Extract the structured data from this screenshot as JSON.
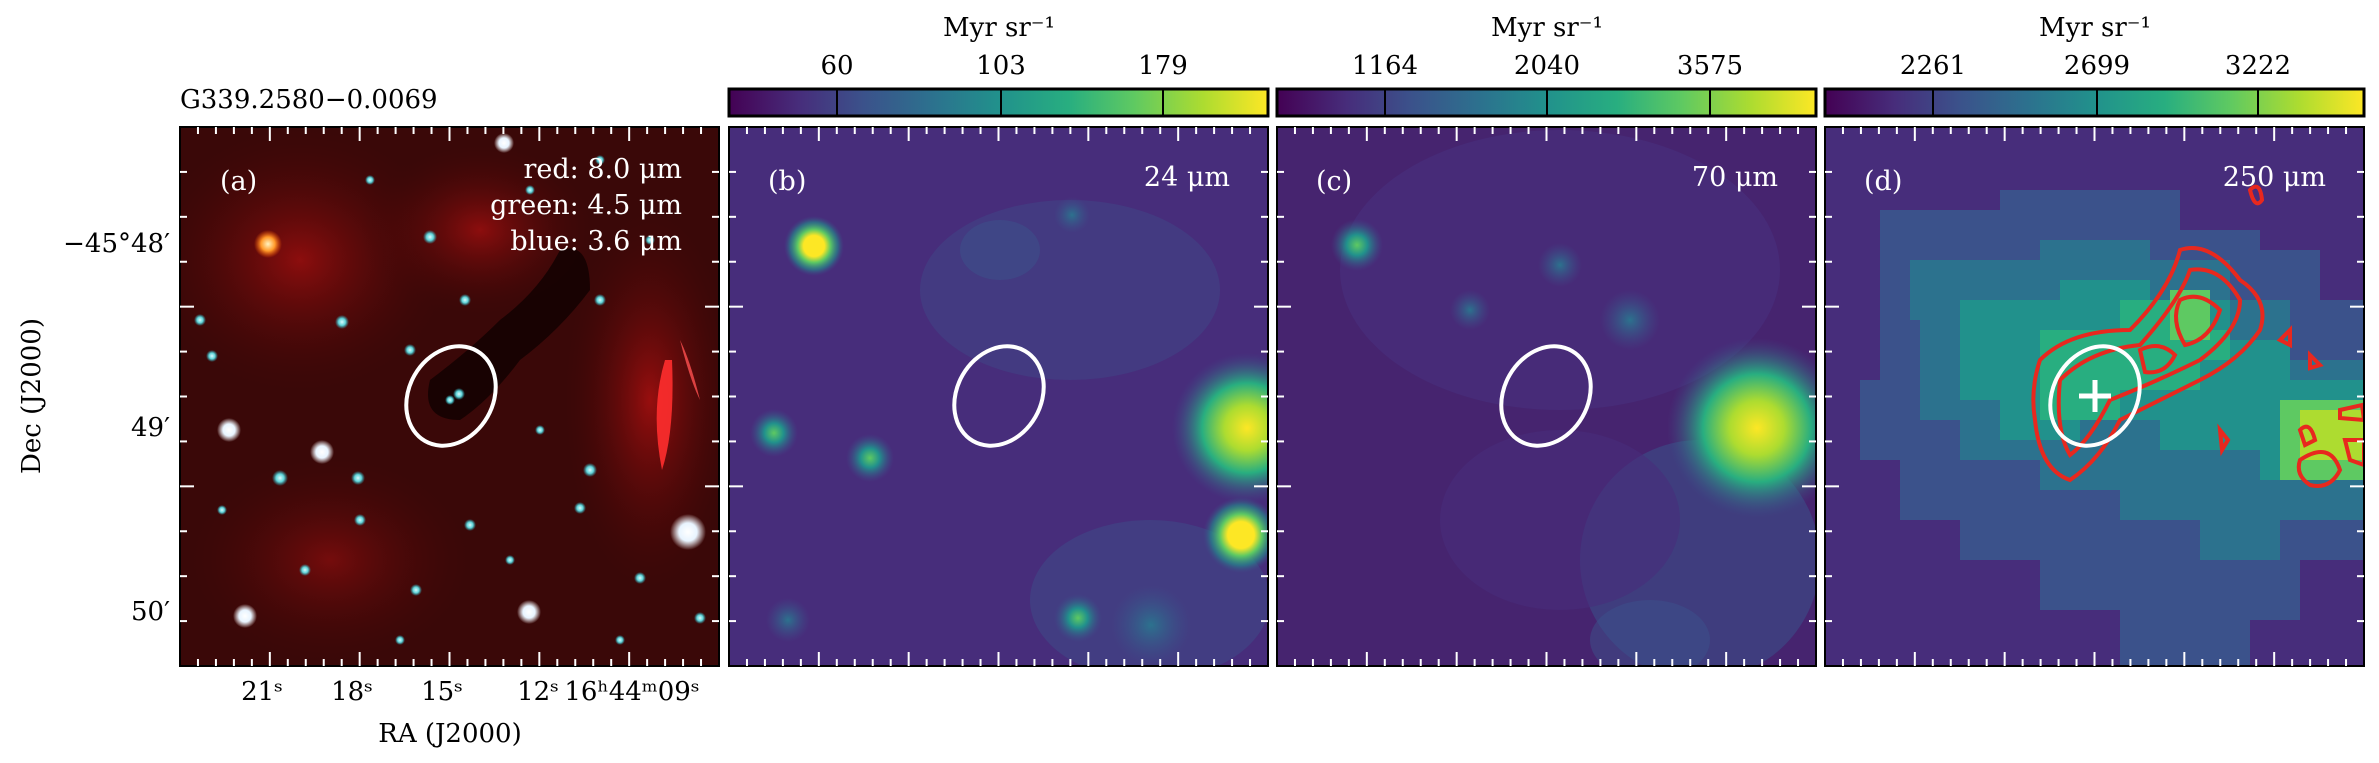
{
  "figure": {
    "source_name": "G339.2580−0.0069",
    "ylabel": "Dec (J2000)",
    "xlabel": "RA (J2000)",
    "dec_ticks": [
      "−45°48′",
      "49′",
      "50′"
    ],
    "ra_ticks": [
      "21ˢ",
      "18ˢ",
      "15ˢ",
      "12ˢ",
      "16ʰ44ᵐ09ˢ"
    ]
  },
  "panels": [
    {
      "tag": "(a)",
      "legend": [
        "red: 8.0 μm",
        "green: 4.5 μm",
        "blue: 3.6 μm"
      ],
      "colormap": "rgb composite"
    },
    {
      "tag": "(b)",
      "band": "24 μm",
      "colorbar": {
        "unit": "Myr sr⁻¹",
        "ticks": [
          "60",
          "103",
          "179"
        ]
      },
      "colormap": "viridis"
    },
    {
      "tag": "(c)",
      "band": "70 μm",
      "colorbar": {
        "unit": "Myr sr⁻¹",
        "ticks": [
          "1164",
          "2040",
          "3575"
        ]
      },
      "colormap": "viridis"
    },
    {
      "tag": "(d)",
      "band": "250 μm",
      "colorbar": {
        "unit": "Myr sr⁻¹",
        "ticks": [
          "2261",
          "2699",
          "3222"
        ]
      },
      "colormap": "viridis",
      "contour_color": "#e8281e",
      "marker": "plus"
    }
  ],
  "colors": {
    "ellipse": "#ffffff",
    "viridis_low": "#440154",
    "viridis_high": "#fde725"
  }
}
